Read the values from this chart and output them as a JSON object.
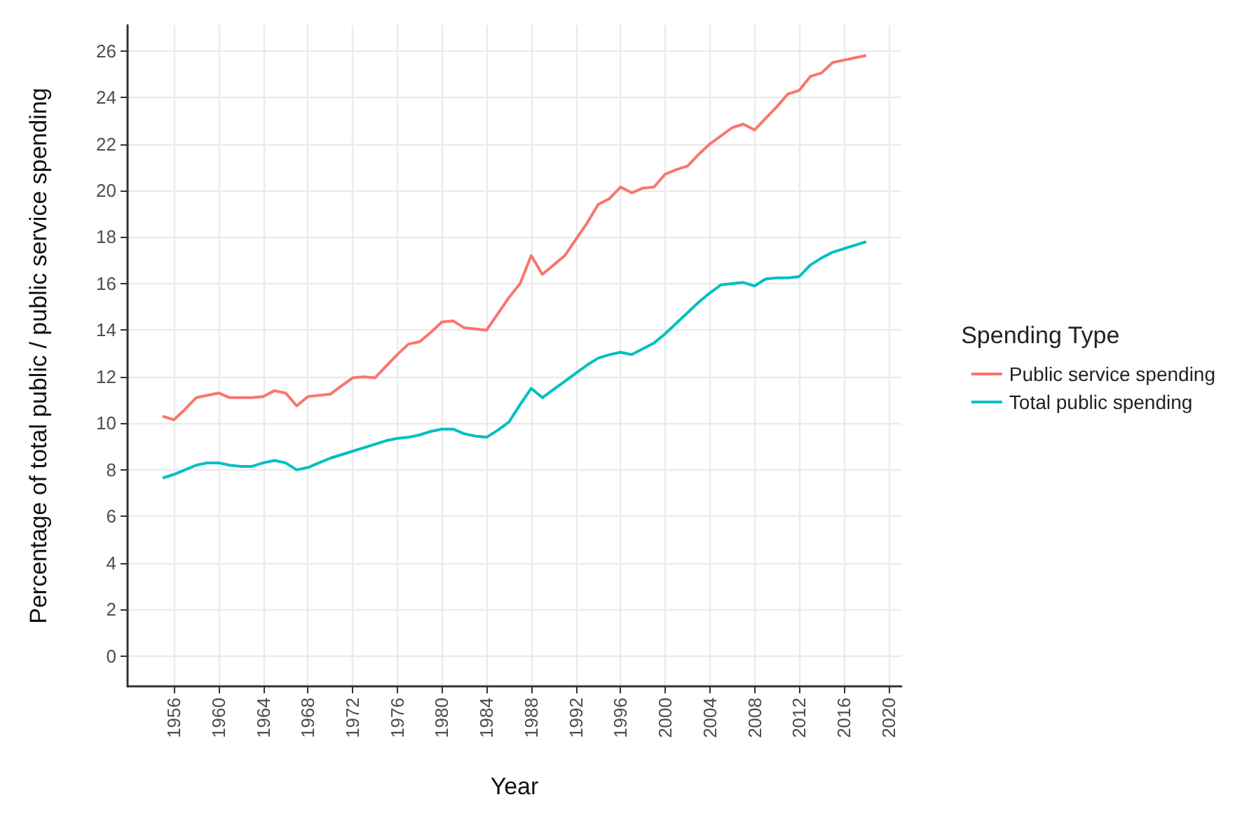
{
  "chart_data": {
    "type": "line",
    "xlabel": "Year",
    "ylabel": "Percentage of total public / public service spending",
    "legend_title": "Spending Type",
    "legend": "right",
    "grid": true,
    "line_style": "solid",
    "marker": "none",
    "x": [
      1955,
      1956,
      1957,
      1958,
      1959,
      1960,
      1961,
      1962,
      1963,
      1964,
      1965,
      1966,
      1967,
      1968,
      1969,
      1970,
      1971,
      1972,
      1973,
      1974,
      1975,
      1976,
      1977,
      1978,
      1979,
      1980,
      1981,
      1982,
      1983,
      1984,
      1985,
      1986,
      1987,
      1988,
      1989,
      1990,
      1991,
      1992,
      1993,
      1994,
      1995,
      1996,
      1997,
      1998,
      1999,
      2000,
      2001,
      2002,
      2003,
      2004,
      2005,
      2006,
      2007,
      2008,
      2009,
      2010,
      2011,
      2012,
      2013,
      2014,
      2015,
      2016,
      2017,
      2018
    ],
    "xlim": [
      1951.85,
      2021.15
    ],
    "xticks": [
      1956,
      1960,
      1964,
      1968,
      1972,
      1976,
      1980,
      1984,
      1988,
      1992,
      1996,
      2000,
      2004,
      2008,
      2012,
      2016,
      2020
    ],
    "ylim": [
      -1.3,
      27.1
    ],
    "yticks": [
      0,
      2,
      4,
      6,
      8,
      10,
      12,
      14,
      16,
      18,
      20,
      22,
      24,
      26
    ],
    "series": [
      {
        "name": "Public service spending",
        "color": "#f8766d",
        "values": [
          10.3,
          10.15,
          10.6,
          11.1,
          11.2,
          11.3,
          11.1,
          11.1,
          11.1,
          11.15,
          11.4,
          11.3,
          10.75,
          11.15,
          11.2,
          11.25,
          11.6,
          11.95,
          12.0,
          11.95,
          12.45,
          12.95,
          13.4,
          13.5,
          13.9,
          14.35,
          14.4,
          14.1,
          14.05,
          14.0,
          14.7,
          15.4,
          16.0,
          17.2,
          16.4,
          16.8,
          17.2,
          17.9,
          18.6,
          19.4,
          19.65,
          20.15,
          19.9,
          20.1,
          20.15,
          20.7,
          20.9,
          21.05,
          21.55,
          22.0,
          22.35,
          22.7,
          22.85,
          22.6,
          23.1,
          23.6,
          24.15,
          24.3,
          24.9,
          25.05,
          25.5,
          25.6,
          25.7,
          25.8
        ]
      },
      {
        "name": "Total public spending",
        "color": "#00bfc4",
        "values": [
          7.65,
          7.8,
          8.0,
          8.2,
          8.3,
          8.3,
          8.2,
          8.15,
          8.15,
          8.3,
          8.4,
          8.3,
          8.0,
          8.1,
          8.3,
          8.5,
          8.65,
          8.8,
          8.95,
          9.1,
          9.25,
          9.35,
          9.4,
          9.5,
          9.65,
          9.75,
          9.75,
          9.55,
          9.45,
          9.4,
          9.7,
          10.05,
          10.8,
          11.5,
          11.1,
          11.45,
          11.8,
          12.15,
          12.5,
          12.8,
          12.95,
          13.05,
          12.95,
          13.2,
          13.45,
          13.85,
          14.3,
          14.75,
          15.2,
          15.6,
          15.95,
          16.0,
          16.05,
          15.9,
          16.2,
          16.25,
          16.25,
          16.3,
          16.8,
          17.1,
          17.35,
          17.5,
          17.65,
          17.8
        ]
      }
    ]
  }
}
